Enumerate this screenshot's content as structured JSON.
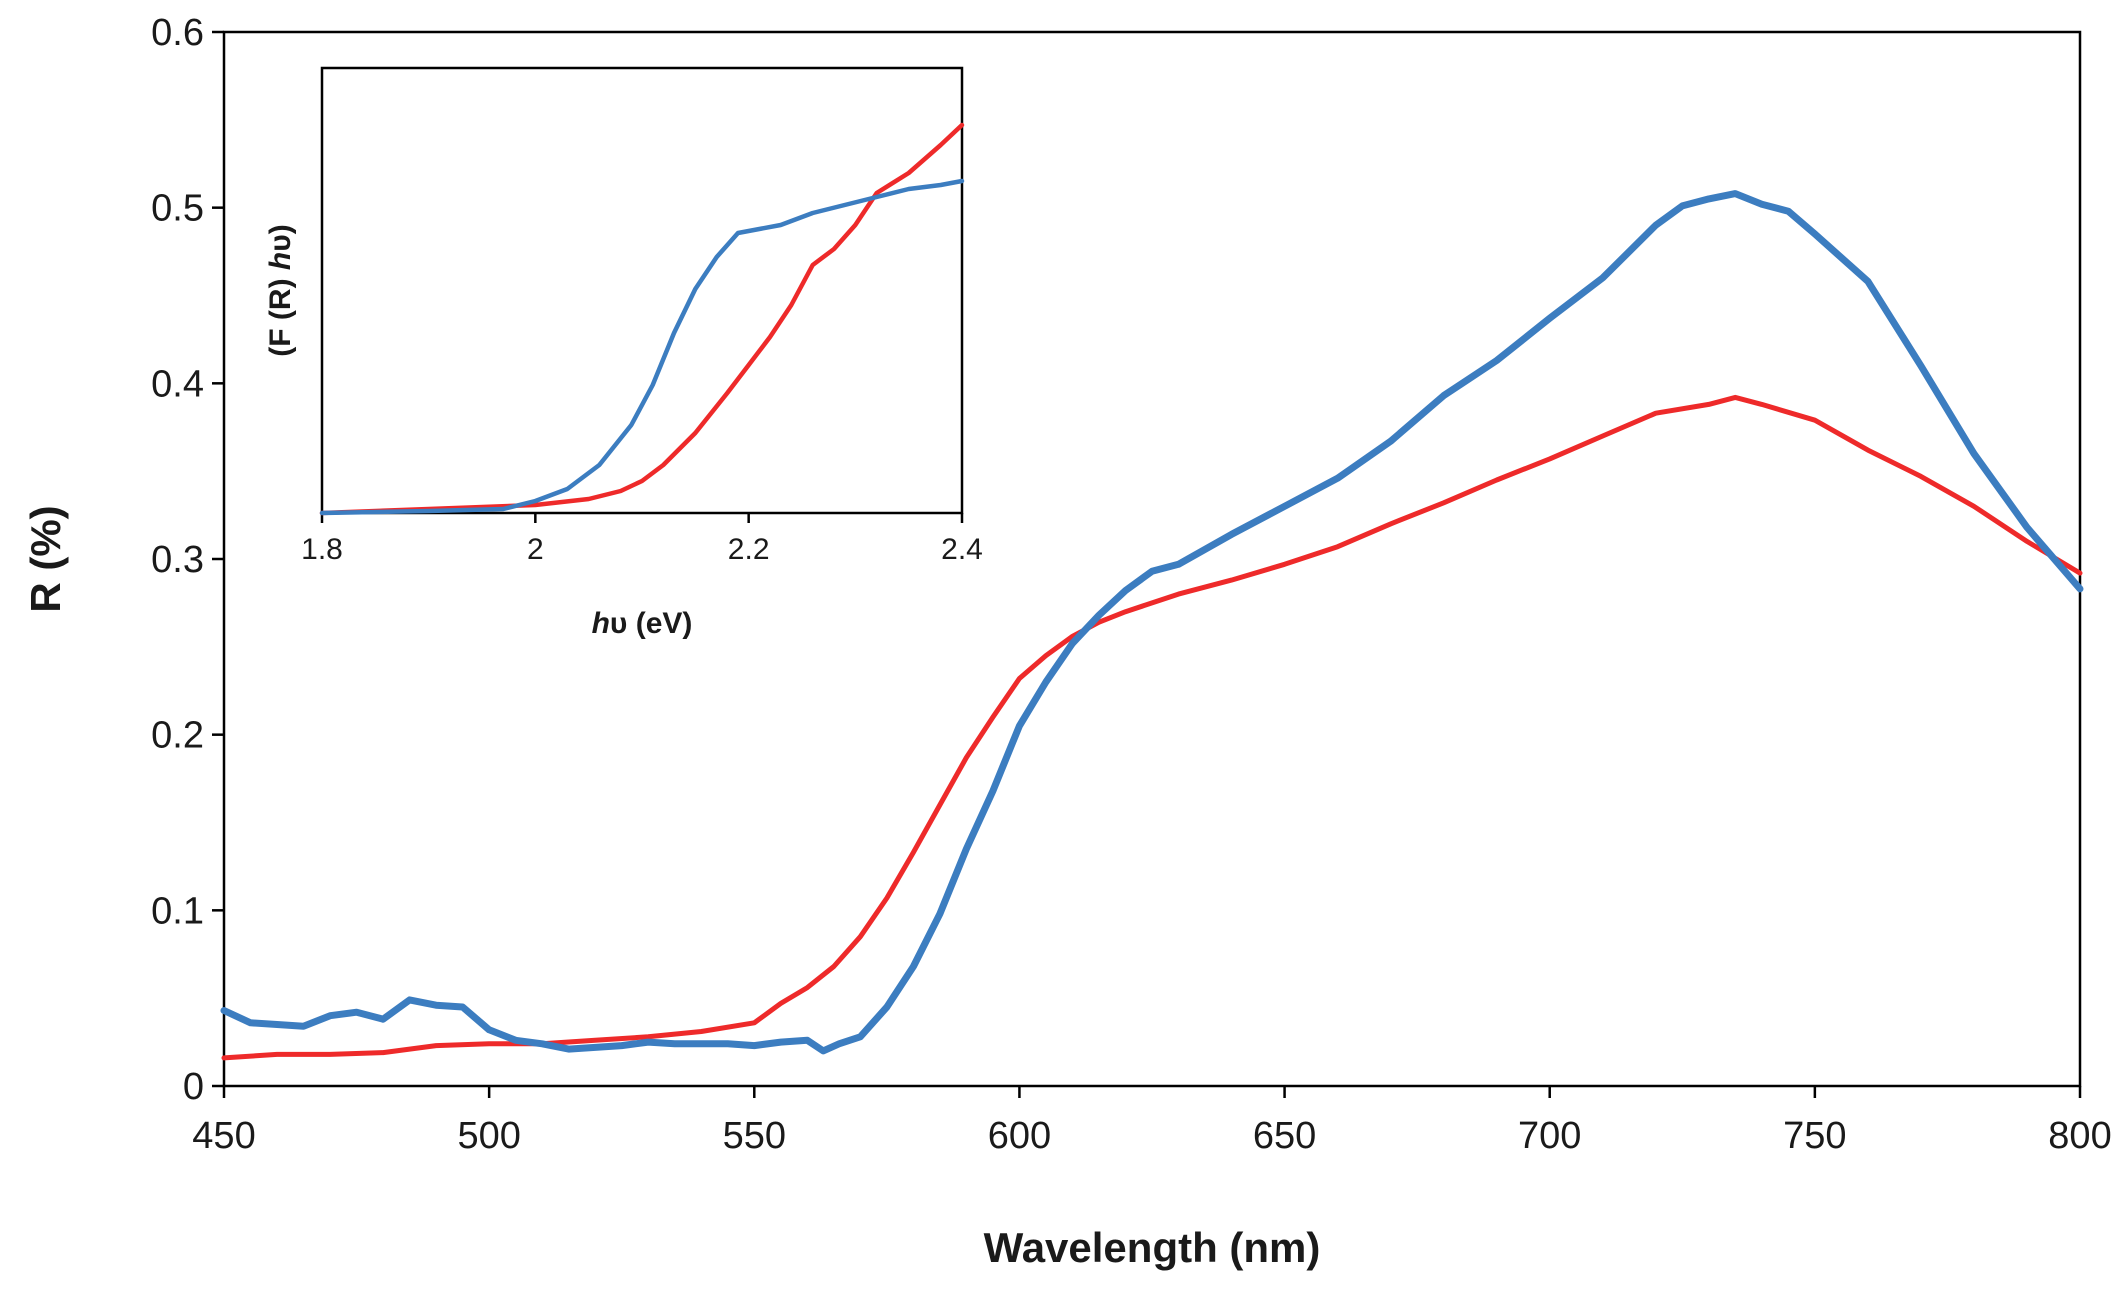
{
  "chart_data": [
    {
      "type": "line",
      "role": "main",
      "title": "",
      "xlabel": "Wavelength (nm)",
      "ylabel": "R (%)",
      "xlim": [
        450,
        800
      ],
      "ylim": [
        0,
        0.6
      ],
      "xticks": [
        450,
        500,
        550,
        600,
        650,
        700,
        750,
        800
      ],
      "yticks": [
        0,
        0.1,
        0.2,
        0.3,
        0.4,
        0.5,
        0.6
      ],
      "xtick_labels": [
        "450",
        "500",
        "550",
        "600",
        "650",
        "700",
        "750",
        "800"
      ],
      "ytick_labels": [
        "0",
        "0.1",
        "0.2",
        "0.3",
        "0.4",
        "0.5",
        "0.6"
      ],
      "grid": false,
      "series": [
        {
          "name": "red",
          "color": "#ee2a2a",
          "x": [
            450,
            460,
            470,
            480,
            490,
            500,
            510,
            520,
            530,
            540,
            550,
            555,
            560,
            565,
            570,
            575,
            580,
            585,
            590,
            595,
            600,
            605,
            610,
            615,
            620,
            630,
            640,
            650,
            660,
            670,
            680,
            690,
            700,
            710,
            720,
            730,
            735,
            740,
            750,
            760,
            770,
            780,
            790,
            800
          ],
          "y": [
            0.016,
            0.018,
            0.018,
            0.019,
            0.023,
            0.024,
            0.024,
            0.026,
            0.028,
            0.031,
            0.036,
            0.047,
            0.056,
            0.068,
            0.085,
            0.107,
            0.133,
            0.16,
            0.187,
            0.21,
            0.232,
            0.245,
            0.256,
            0.264,
            0.27,
            0.28,
            0.288,
            0.297,
            0.307,
            0.32,
            0.332,
            0.345,
            0.357,
            0.37,
            0.383,
            0.388,
            0.392,
            0.388,
            0.379,
            0.362,
            0.347,
            0.33,
            0.31,
            0.292
          ]
        },
        {
          "name": "blue",
          "color": "#3c7dc0",
          "x": [
            450,
            455,
            460,
            465,
            470,
            475,
            480,
            485,
            490,
            495,
            500,
            505,
            510,
            515,
            520,
            525,
            530,
            535,
            540,
            545,
            550,
            555,
            560,
            563,
            566,
            570,
            575,
            580,
            585,
            590,
            595,
            600,
            605,
            610,
            615,
            620,
            625,
            630,
            640,
            650,
            660,
            670,
            680,
            690,
            700,
            710,
            720,
            725,
            730,
            735,
            740,
            745,
            750,
            760,
            770,
            780,
            790,
            800
          ],
          "y": [
            0.043,
            0.036,
            0.035,
            0.034,
            0.04,
            0.042,
            0.038,
            0.049,
            0.046,
            0.045,
            0.032,
            0.026,
            0.024,
            0.021,
            0.022,
            0.023,
            0.025,
            0.024,
            0.024,
            0.024,
            0.023,
            0.025,
            0.026,
            0.02,
            0.024,
            0.028,
            0.045,
            0.068,
            0.098,
            0.135,
            0.168,
            0.205,
            0.23,
            0.252,
            0.268,
            0.282,
            0.293,
            0.297,
            0.314,
            0.33,
            0.346,
            0.367,
            0.393,
            0.413,
            0.437,
            0.46,
            0.49,
            0.501,
            0.505,
            0.508,
            0.502,
            0.498,
            0.485,
            0.458,
            0.41,
            0.36,
            0.318,
            0.283
          ]
        }
      ]
    },
    {
      "type": "line",
      "role": "inset",
      "title": "",
      "xlabel": "hυ (eV)",
      "xlabel_italic": "h",
      "xlabel_rest": "υ (eV)",
      "ylabel": "(F (R) hυ)",
      "ylabel_prefix": "(F (R) ",
      "ylabel_italic": "h",
      "ylabel_suffix": "υ)",
      "xlim": [
        1.8,
        2.4
      ],
      "ylim": [
        0,
        1
      ],
      "xticks": [
        1.8,
        2.0,
        2.2,
        2.4
      ],
      "xtick_labels": [
        "1.8",
        "2",
        "2.2",
        "2.4"
      ],
      "yticks_shown": false,
      "grid": false,
      "series": [
        {
          "name": "red",
          "color": "#ee2a2a",
          "x": [
            1.8,
            1.9,
            2.0,
            2.05,
            2.08,
            2.1,
            2.12,
            2.15,
            2.18,
            2.2,
            2.22,
            2.24,
            2.26,
            2.28,
            2.3,
            2.32,
            2.35,
            2.38,
            2.4
          ],
          "y": [
            0.0,
            0.01,
            0.02,
            0.035,
            0.055,
            0.08,
            0.12,
            0.2,
            0.3,
            0.37,
            0.44,
            0.52,
            0.62,
            0.66,
            0.72,
            0.8,
            0.85,
            0.92,
            0.97
          ]
        },
        {
          "name": "blue",
          "color": "#3c7dc0",
          "x": [
            1.8,
            1.9,
            1.97,
            2.0,
            2.03,
            2.06,
            2.09,
            2.11,
            2.13,
            2.15,
            2.17,
            2.19,
            2.21,
            2.23,
            2.26,
            2.29,
            2.32,
            2.35,
            2.38,
            2.4
          ],
          "y": [
            0.0,
            0.005,
            0.01,
            0.03,
            0.06,
            0.12,
            0.22,
            0.32,
            0.45,
            0.56,
            0.64,
            0.7,
            0.71,
            0.72,
            0.75,
            0.77,
            0.79,
            0.81,
            0.82,
            0.83
          ]
        }
      ]
    }
  ]
}
